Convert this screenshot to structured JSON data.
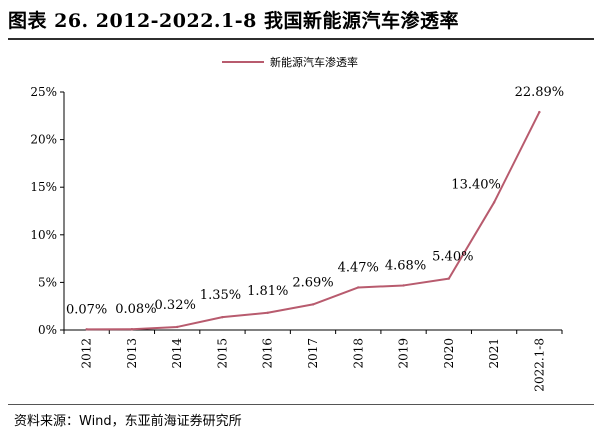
{
  "figure": {
    "title": "图表 26. 2012-2022.1-8 我国新能源汽车渗透率",
    "source": "资料来源：Wind，东亚前海证券研究所"
  },
  "colors": {
    "series": "#b85b6e",
    "axis": "#000000",
    "rule": "#2f2f2f"
  },
  "chart_data": {
    "type": "line",
    "title": "",
    "xlabel": "",
    "ylabel": "",
    "categories": [
      "2012",
      "2013",
      "2014",
      "2015",
      "2016",
      "2017",
      "2018",
      "2019",
      "2020",
      "2021",
      "2022.1-8"
    ],
    "series": [
      {
        "name": "新能源汽车渗透率",
        "values": [
          0.07,
          0.08,
          0.32,
          1.35,
          1.81,
          2.69,
          4.47,
          4.68,
          5.4,
          13.4,
          22.89
        ],
        "labels": [
          "0.07%",
          "0.08%",
          "0.32%",
          "1.35%",
          "1.81%",
          "2.69%",
          "4.47%",
          "4.68%",
          "5.40%",
          "13.40%",
          "22.89%"
        ]
      }
    ],
    "ylim": [
      0,
      25
    ],
    "yticks": [
      0,
      5,
      10,
      15,
      20,
      25
    ],
    "ytick_labels": [
      "0%",
      "5%",
      "10%",
      "15%",
      "20%",
      "25%"
    ],
    "grid": false,
    "legend_position": "top-center"
  }
}
